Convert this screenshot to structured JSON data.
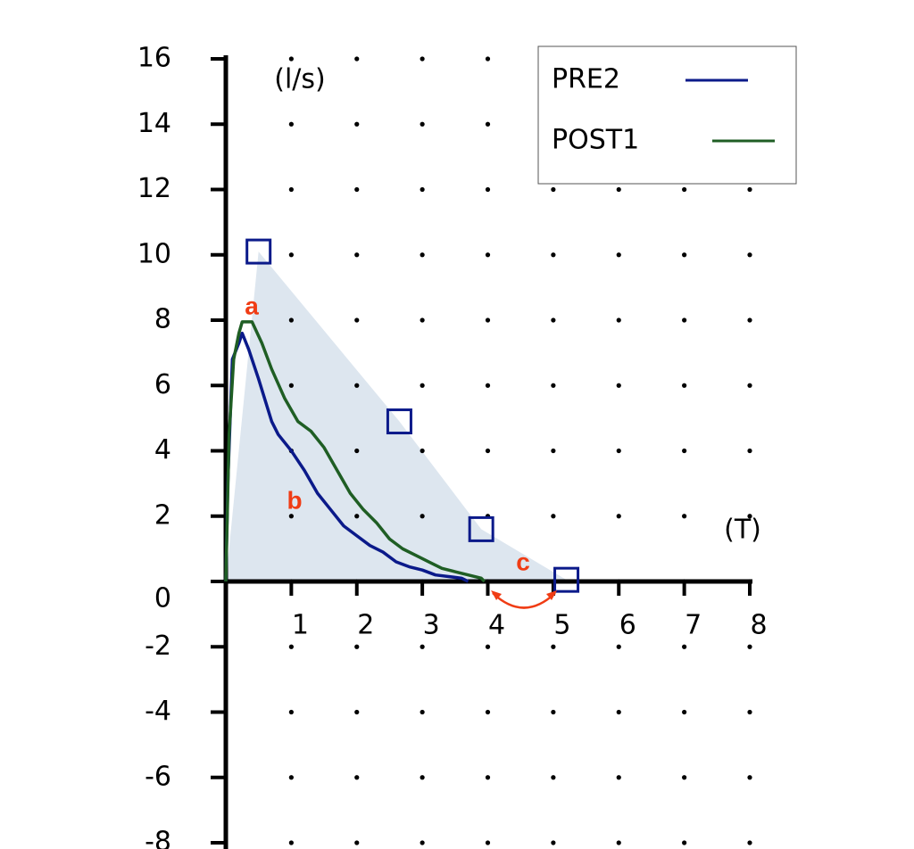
{
  "chart_data": {
    "type": "line",
    "x_label": "(T)",
    "y_label": "(l/s)",
    "series": [
      {
        "name": "PRE2",
        "color": "#0b1a8a",
        "x": [
          0,
          0.03,
          0.1,
          0.2,
          0.25,
          0.35,
          0.5,
          0.7,
          0.8,
          1.0,
          1.2,
          1.4,
          1.6,
          1.8,
          2.0,
          2.2,
          2.4,
          2.6,
          2.8,
          3.0,
          3.2,
          3.4,
          3.6,
          3.7
        ],
        "values": [
          0,
          3,
          6.8,
          7.3,
          7.6,
          7.1,
          6.2,
          4.9,
          4.5,
          4.0,
          3.4,
          2.7,
          2.2,
          1.7,
          1.4,
          1.1,
          0.9,
          0.6,
          0.45,
          0.35,
          0.2,
          0.15,
          0.1,
          0
        ]
      },
      {
        "name": "POST1",
        "color": "#1f5e24",
        "x": [
          0,
          0.05,
          0.12,
          0.2,
          0.25,
          0.4,
          0.55,
          0.7,
          0.9,
          1.1,
          1.3,
          1.5,
          1.7,
          1.9,
          2.1,
          2.3,
          2.5,
          2.7,
          2.9,
          3.1,
          3.3,
          3.5,
          3.7,
          3.9,
          3.95
        ],
        "values": [
          0,
          4.5,
          6.8,
          7.6,
          7.95,
          7.95,
          7.3,
          6.5,
          5.6,
          4.9,
          4.6,
          4.1,
          3.4,
          2.7,
          2.2,
          1.8,
          1.3,
          1.0,
          0.8,
          0.6,
          0.4,
          0.3,
          0.2,
          0.1,
          0
        ]
      }
    ],
    "points": {
      "color": "#0b1a8a",
      "shade": "#dde6ef",
      "x": [
        0.5,
        2.65,
        3.9,
        5.2
      ],
      "values": [
        10.1,
        4.9,
        1.6,
        0.05
      ]
    },
    "annotations": [
      {
        "text": "a",
        "color": "#f03c14"
      },
      {
        "text": "b",
        "color": "#f03c14"
      },
      {
        "text": "c",
        "color": "#f03c14"
      }
    ],
    "xlim": [
      0,
      8
    ],
    "ylim": [
      -8,
      16
    ],
    "xticks": [
      1,
      2,
      3,
      4,
      5,
      6,
      7,
      8
    ],
    "yticks": [
      -8,
      -6,
      -4,
      -2,
      0,
      2,
      4,
      6,
      8,
      10,
      12,
      14,
      16
    ],
    "grid": "dots",
    "legend": "top-right"
  }
}
